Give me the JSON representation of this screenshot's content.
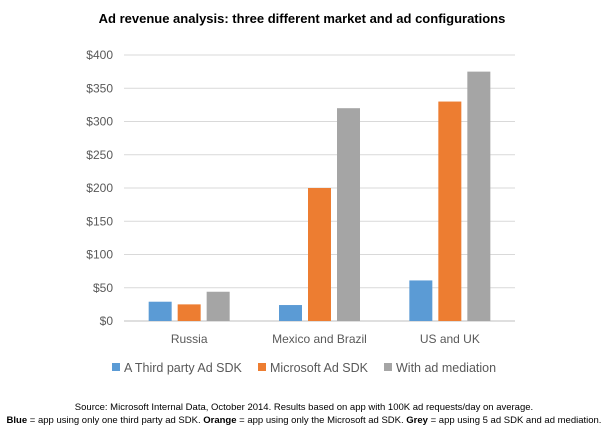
{
  "chart_data": {
    "type": "bar",
    "title": "Ad revenue analysis: three different market and ad configurations",
    "categories": [
      "Russia",
      "Mexico and Brazil",
      "US and UK"
    ],
    "series": [
      {
        "name": "A Third party Ad SDK",
        "color": "#5B9BD5",
        "values": [
          29,
          24,
          61
        ]
      },
      {
        "name": "Microsoft Ad SDK",
        "color": "#ED7D31",
        "values": [
          25,
          200,
          330
        ]
      },
      {
        "name": "With ad mediation",
        "color": "#A5A5A5",
        "values": [
          44,
          320,
          375
        ]
      }
    ],
    "ylim": [
      0,
      400
    ],
    "yticks": [
      0,
      50,
      100,
      150,
      200,
      250,
      300,
      350,
      400
    ],
    "ytick_labels": [
      "$0",
      "$50",
      "$100",
      "$150",
      "$200",
      "$250",
      "$300",
      "$350",
      "$400"
    ],
    "xlabel": "",
    "ylabel": "",
    "grid": true,
    "legend_position": "bottom"
  },
  "caption": {
    "line1": "Source: Microsoft Internal Data, October 2014. Results based on app with 100K ad requests/day on average.",
    "line2_parts": [
      {
        "bold": "Blue",
        "text": " = app using only one third party ad SDK. "
      },
      {
        "bold": "Orange",
        "text": " = app using only the Microsoft ad SDK. "
      },
      {
        "bold": "Grey",
        "text": " = app using 5 ad SDK and ad mediation."
      }
    ]
  }
}
